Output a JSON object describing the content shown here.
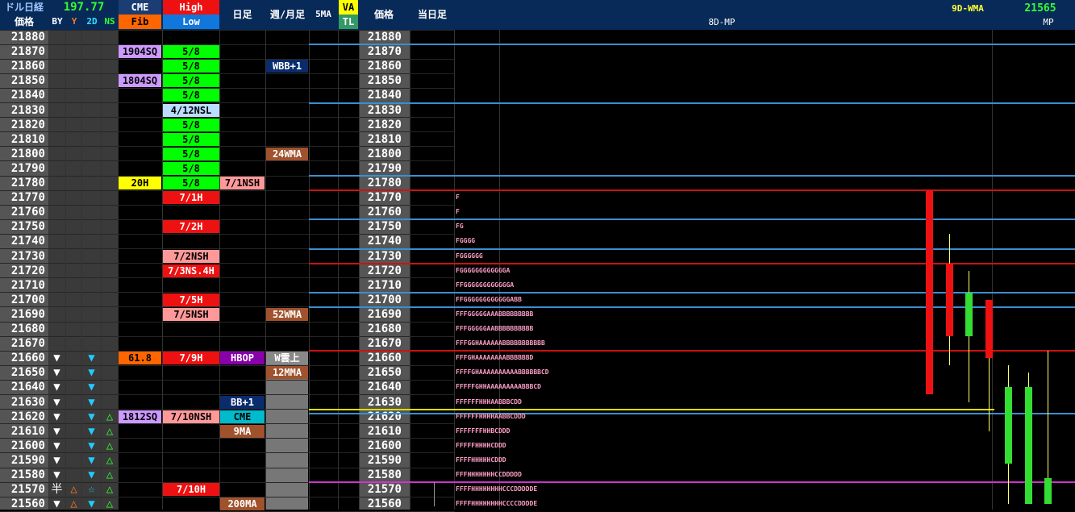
{
  "header": {
    "title1": "ドル日経",
    "title2": "価格",
    "rate": "197.77",
    "by": "BY",
    "y": "Y",
    "d2": "2D",
    "ns": "NS",
    "cme": "CME",
    "fib": "Fib",
    "high": "High",
    "low": "Low",
    "daily": "日足",
    "weekly": "週/月足",
    "ma5": "5MA",
    "va": "VA",
    "tl": "TL",
    "price": "価格",
    "today": "当日足",
    "mp8d": "8D-MP",
    "wma9d": "9D-WMA",
    "mp_value": "21565",
    "mp": "MP"
  },
  "prices": [
    21880,
    21870,
    21860,
    21850,
    21840,
    21830,
    21820,
    21810,
    21800,
    21790,
    21780,
    21770,
    21760,
    21750,
    21740,
    21730,
    21720,
    21710,
    21700,
    21690,
    21680,
    21670,
    21660,
    21650,
    21640,
    21630,
    21620,
    21610,
    21600,
    21590,
    21580,
    21570,
    21560
  ],
  "cme": [
    {
      "row": 1,
      "text": "1904SQ",
      "bg": "#cc99ff",
      "color": "#000"
    },
    {
      "row": 3,
      "text": "1804SQ",
      "bg": "#cc99ff",
      "color": "#000"
    },
    {
      "row": 10,
      "text": "20H",
      "bg": "#ffff00",
      "color": "#000"
    },
    {
      "row": 22,
      "text": "61.8",
      "bg": "#ff6600",
      "color": "#000"
    },
    {
      "row": 26,
      "text": "1812SQ",
      "bg": "#cc99ff",
      "color": "#000"
    }
  ],
  "highlow": [
    {
      "row": 1,
      "text": "5/8",
      "bg": "#00ff00",
      "color": "#000"
    },
    {
      "row": 2,
      "text": "5/8",
      "bg": "#00ff00",
      "color": "#000"
    },
    {
      "row": 3,
      "text": "5/8",
      "bg": "#00ff00",
      "color": "#000"
    },
    {
      "row": 4,
      "text": "5/8",
      "bg": "#00ff00",
      "color": "#000"
    },
    {
      "row": 5,
      "text": "4/12NSL",
      "bg": "#bbddff",
      "color": "#000"
    },
    {
      "row": 6,
      "text": "5/8",
      "bg": "#00ff00",
      "color": "#000"
    },
    {
      "row": 7,
      "text": "5/8",
      "bg": "#00ff00",
      "color": "#000"
    },
    {
      "row": 8,
      "text": "5/8",
      "bg": "#00ff00",
      "color": "#000"
    },
    {
      "row": 9,
      "text": "5/8",
      "bg": "#00ff00",
      "color": "#000"
    },
    {
      "row": 10,
      "text": "5/8",
      "bg": "#00ff00",
      "color": "#000"
    },
    {
      "row": 11,
      "text": "7/1H",
      "bg": "#ee1111",
      "color": "#fff"
    },
    {
      "row": 13,
      "text": "7/2H",
      "bg": "#ee1111",
      "color": "#fff"
    },
    {
      "row": 15,
      "text": "7/2NSH",
      "bg": "#ff9999",
      "color": "#000"
    },
    {
      "row": 16,
      "text": "7/3NS.4H",
      "bg": "#ee1111",
      "color": "#fff"
    },
    {
      "row": 18,
      "text": "7/5H",
      "bg": "#ee1111",
      "color": "#fff"
    },
    {
      "row": 19,
      "text": "7/5NSH",
      "bg": "#ff9999",
      "color": "#000"
    },
    {
      "row": 22,
      "text": "7/9H",
      "bg": "#ee1111",
      "color": "#fff"
    },
    {
      "row": 26,
      "text": "7/10NSH",
      "bg": "#ff9999",
      "color": "#000"
    },
    {
      "row": 31,
      "text": "7/10H",
      "bg": "#ee1111",
      "color": "#fff"
    }
  ],
  "daily": [
    {
      "row": 10,
      "text": "7/1NSH",
      "bg": "#ff9999",
      "color": "#000"
    },
    {
      "row": 22,
      "text": "HBOP",
      "bg": "#8800aa",
      "color": "#fff"
    },
    {
      "row": 25,
      "text": "BB+1",
      "bg": "#0a2c6c",
      "color": "#fff"
    },
    {
      "row": 26,
      "text": "CME",
      "bg": "#00bbcc",
      "color": "#000"
    },
    {
      "row": 27,
      "text": "9MA",
      "bg": "#a0522d",
      "color": "#fff"
    },
    {
      "row": 32,
      "text": "200MA",
      "bg": "#a0522d",
      "color": "#fff"
    }
  ],
  "weekly": [
    {
      "row": 2,
      "text": "WBB+1",
      "bg": "#0a2c6c",
      "color": "#fff"
    },
    {
      "row": 8,
      "text": "24WMA",
      "bg": "#a0522d",
      "color": "#fff"
    },
    {
      "row": 19,
      "text": "52WMA",
      "bg": "#a0522d",
      "color": "#fff"
    },
    {
      "row": 22,
      "text": "W雲上",
      "bg": "#888888",
      "color": "#fff"
    },
    {
      "row": 23,
      "text": "12MMA",
      "bg": "#a0522d",
      "color": "#fff"
    }
  ],
  "by_marks": {
    "rows": [
      22,
      23,
      24,
      25,
      26,
      27,
      28,
      29,
      30,
      31,
      32
    ],
    "glyph": "▼",
    "half_row": 31,
    "half_glyph": "半"
  },
  "y_marks": {
    "rows": [
      31,
      32
    ],
    "glyph": "△"
  },
  "d2_marks": {
    "rows": [
      22,
      23,
      24,
      25,
      26,
      27,
      28,
      29,
      30,
      32
    ],
    "glyph": "▼",
    "star_row": 31,
    "star_glyph": "☆"
  },
  "ns_marks": {
    "rows": [
      26,
      27,
      28,
      29,
      30,
      31,
      32
    ],
    "glyph": "△"
  },
  "hlines": [
    {
      "row": 1,
      "color": "#3a8fd0"
    },
    {
      "row": 5,
      "color": "#3a8fd0"
    },
    {
      "row": 10,
      "color": "#3a8fd0"
    },
    {
      "row": 11,
      "color": "#cc1111"
    },
    {
      "row": 13,
      "color": "#3a8fd0"
    },
    {
      "row": 15,
      "color": "#3a8fd0"
    },
    {
      "row": 16,
      "color": "#cc1111"
    },
    {
      "row": 18,
      "color": "#3a8fd0"
    },
    {
      "row": 19,
      "color": "#3a8fd0"
    },
    {
      "row": 22,
      "color": "#cc1111"
    },
    {
      "row": 26,
      "color": "#dddd00"
    },
    {
      "row": 26.3,
      "color": "#3a8fd0"
    },
    {
      "row": 31,
      "color": "#cc33cc"
    }
  ],
  "tpo": [
    {
      "row": 11,
      "text": "F"
    },
    {
      "row": 12,
      "text": "F"
    },
    {
      "row": 13,
      "text": "FG"
    },
    {
      "row": 14,
      "text": "FGGGG"
    },
    {
      "row": 15,
      "text": "FGGGGGG"
    },
    {
      "row": 16,
      "text": "FGGGGGGGGGGGGA"
    },
    {
      "row": 17,
      "text": "FFGGGGGGGGGGGGA"
    },
    {
      "row": 18,
      "text": "FFGGGGGGGGGGGGABB"
    },
    {
      "row": 19,
      "text": "FFFGGGGGAAABBBBBBBBB"
    },
    {
      "row": 20,
      "text": "FFFGGGGGAABBBBBBBBBB"
    },
    {
      "row": 21,
      "text": "FFFGGHAAAAAABBBBBBBBBBB"
    },
    {
      "row": 22,
      "text": "FFFGHAAAAAAAABBBBBBD"
    },
    {
      "row": 23,
      "text": "FFFFGHAAAAAAAAAABBBBBBCD"
    },
    {
      "row": 24,
      "text": "FFFFFGHHAAAAAAAAABBBCD"
    },
    {
      "row": 25,
      "text": "FFFFFFHHHAABBBCDD"
    },
    {
      "row": 26,
      "text": "FFFFFFHHHHAABBCDDD"
    },
    {
      "row": 27,
      "text": "FFFFFFFHHBCDDD"
    },
    {
      "row": 28,
      "text": "FFFFFHHHHCDDD"
    },
    {
      "row": 29,
      "text": "FFFFHHHHHCDDD"
    },
    {
      "row": 30,
      "text": "FFFHHHHHHHCCDDDDD"
    },
    {
      "row": 31,
      "text": "FFFFHHHHHHHHCCCDDDDDE"
    },
    {
      "row": 32,
      "text": "FFFFHHHHHHHHCCCCDDDDE"
    }
  ],
  "candles": [
    {
      "open": 21775,
      "close": 21635,
      "high": 21775,
      "low": 21635,
      "color": "#ee1111"
    },
    {
      "open": 21725,
      "close": 21675,
      "high": 21745,
      "low": 21655,
      "color": "#ee1111"
    },
    {
      "open": 21675,
      "close": 21705,
      "high": 21720,
      "low": 21630,
      "color": "#33dd33"
    },
    {
      "open": 21700,
      "close": 21660,
      "high": 21700,
      "low": 21610,
      "color": "#ee1111"
    },
    {
      "open": 21588,
      "close": 21640,
      "high": 21655,
      "low": 21560,
      "color": "#33dd33"
    },
    {
      "open": 21560,
      "close": 21640,
      "high": 21650,
      "low": 21560,
      "color": "#33dd33"
    },
    {
      "open": 21560,
      "close": 21578,
      "high": 21665,
      "low": 21560,
      "color": "#33dd33"
    }
  ]
}
